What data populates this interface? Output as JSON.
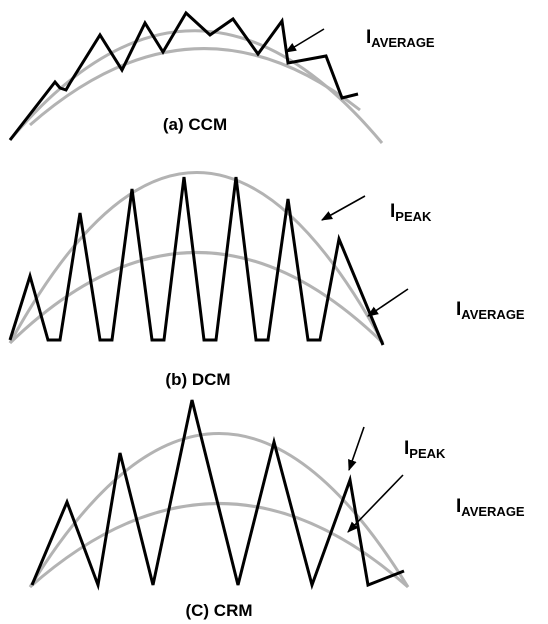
{
  "panels": {
    "ccm": {
      "caption": "(a) CCM",
      "labels": [
        {
          "main": "I",
          "sub": "AVERAGE"
        }
      ]
    },
    "dcm": {
      "caption": "(b) DCM",
      "labels": [
        {
          "main": "I",
          "sub": "PEAK"
        },
        {
          "main": "I",
          "sub": "AVERAGE"
        }
      ]
    },
    "crm": {
      "caption": "(C) CRM",
      "labels": [
        {
          "main": "I",
          "sub": "PEAK"
        },
        {
          "main": "I",
          "sub": "AVERAGE"
        }
      ]
    }
  },
  "colors": {
    "envelope": "#b3b3b3",
    "waveform": "#000000"
  }
}
